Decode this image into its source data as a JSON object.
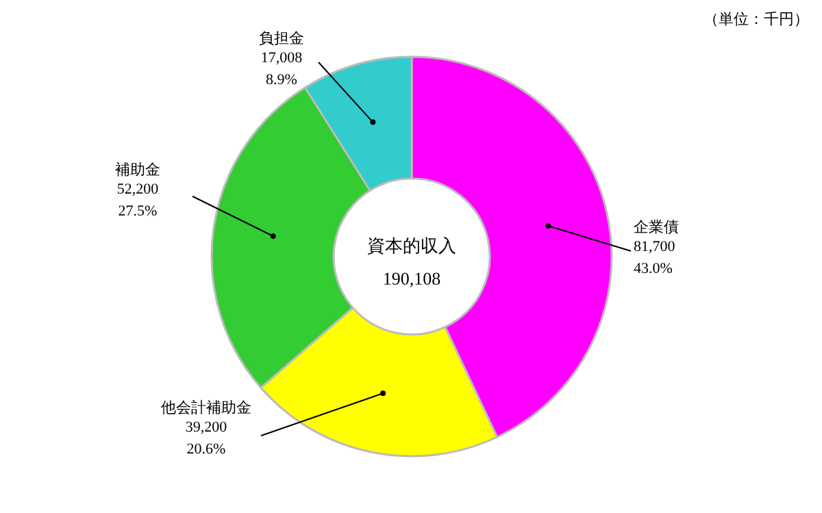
{
  "chart_data": {
    "type": "donut",
    "categories": [
      "企業債",
      "他会計補助金",
      "補助金",
      "負担金"
    ],
    "values": [
      81700,
      39200,
      52200,
      17008
    ],
    "value_labels": [
      "81,700\n43.0%",
      "39,200\n20.6%",
      "52,200\n27.5%",
      "17,008\n8.9%"
    ],
    "colors": [
      "#ff00ff",
      "#ffff00",
      "#33cc33",
      "#33cccc"
    ],
    "annotations": [
      "資本的収入",
      "190,108",
      "（単位：千円）"
    ],
    "legend": false
  }
}
